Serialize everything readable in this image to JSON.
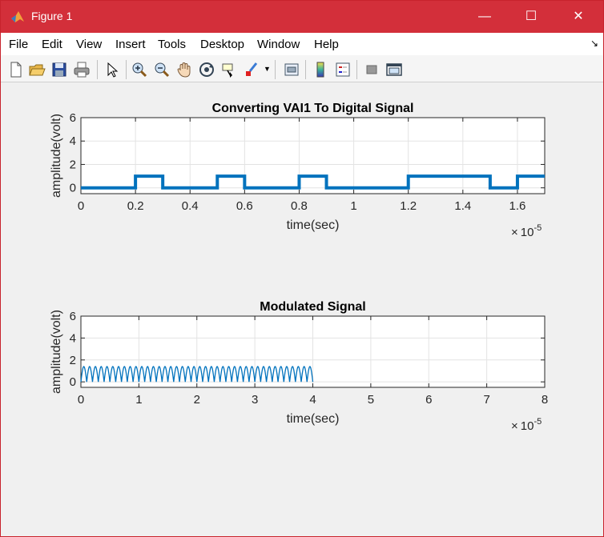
{
  "window": {
    "title": "Figure 1",
    "controls": {
      "minimize": "—",
      "maximize": "☐",
      "close": "✕"
    }
  },
  "menu": [
    "File",
    "Edit",
    "View",
    "Insert",
    "Tools",
    "Desktop",
    "Window",
    "Help"
  ],
  "toolbar_icons": [
    "new-figure-icon",
    "open-file-icon",
    "save-icon",
    "print-icon",
    "edit-plot-icon",
    "zoom-in-icon",
    "zoom-out-icon",
    "pan-icon",
    "rotate-3d-icon",
    "data-cursor-icon",
    "brush-icon",
    "link-plot-icon",
    "colorbar-icon",
    "legend-icon",
    "hide-plot-tools-icon",
    "show-plot-tools-icon"
  ],
  "chart_data": [
    {
      "type": "line",
      "title": "Converting VAI1 To Digital Signal",
      "xlabel": "time(sec)",
      "ylabel": "amplitude(volt)",
      "x_exponent": "10",
      "x_exponent_power": "-5",
      "xlim": [
        0,
        1.7
      ],
      "ylim": [
        -0.5,
        6
      ],
      "xticks": [
        "0",
        "0.2",
        "0.4",
        "0.6",
        "0.8",
        "1",
        "1.2",
        "1.4",
        "1.6"
      ],
      "yticks": [
        "0",
        "2",
        "4",
        "6"
      ],
      "grid": true,
      "color": "#0072bd",
      "line_width": "thick",
      "bits": [
        0,
        0,
        1,
        0,
        0,
        1,
        0,
        0,
        1,
        0,
        0,
        0,
        1,
        1,
        1,
        0,
        1
      ],
      "bit_duration": 0.1
    },
    {
      "type": "line",
      "title": "Modulated Signal",
      "xlabel": "time(sec)",
      "ylabel": "amplitude(volt)",
      "x_exponent": "10",
      "x_exponent_power": "-5",
      "xlim": [
        0,
        8
      ],
      "ylim": [
        -0.5,
        6
      ],
      "xticks": [
        "0",
        "1",
        "2",
        "3",
        "4",
        "5",
        "6",
        "7",
        "8"
      ],
      "yticks": [
        "0",
        "2",
        "4",
        "6"
      ],
      "grid": true,
      "color": "#0072bd",
      "signal_end": 4,
      "peak_amplitude": 1.4,
      "cycles": 40
    }
  ]
}
